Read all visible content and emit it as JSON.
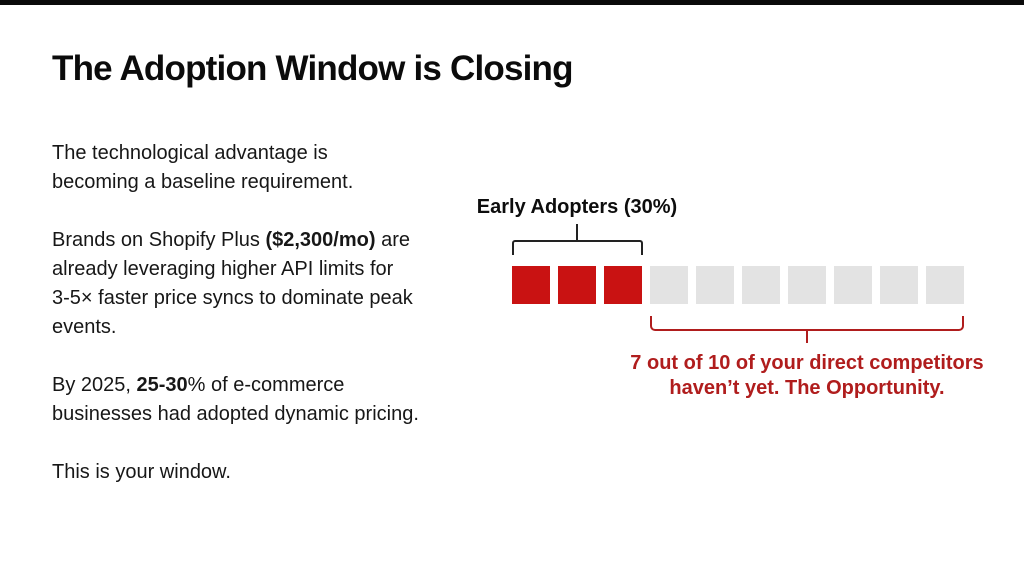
{
  "title": "The Adoption Window is Closing",
  "left": {
    "p1": {
      "l1": "The technological advantage is",
      "l2": "becoming a baseline requirement."
    },
    "p2": {
      "l1a": "Brands on Shopify Plus ",
      "l1b": "($2,300/mo)",
      "l1c": " are",
      "l2": "already leveraging higher API limits for",
      "l3": "3-5× faster price syncs to dominate peak",
      "l4": "events."
    },
    "p3": {
      "l1a": "By 2025, ",
      "l1b": "25-30",
      "l1c": "% of e-commerce",
      "l2": "businesses had adopted dynamic pricing."
    },
    "p4": {
      "l1": "This is your window."
    }
  },
  "visual": {
    "early_label": "Early Adopters (30%)",
    "caption_line1": "7 out of 10 of your direct competitors",
    "caption_line2": "haven’t yet. The Opportunity.",
    "squares": {
      "total": 10,
      "adopted": 3
    }
  },
  "colors": {
    "adopted_red": "#c91212",
    "non_adopter_gray": "#e3e3e3",
    "accent_red": "#b01d1d",
    "bracket_black": "#222222"
  },
  "chart_data": {
    "type": "pictograph",
    "title": "Early Adopters (30%)",
    "categories": [
      "Early adopters",
      "Not yet adopted (direct competitors)"
    ],
    "values": [
      3,
      7
    ],
    "total_units": 10,
    "percentages": [
      30,
      70
    ],
    "unit_colors": [
      "#c91212",
      "#e3e3e3"
    ],
    "annotations": [
      "Early Adopters (30%)",
      "7 out of 10 of your direct competitors haven’t yet. The Opportunity."
    ],
    "legend_position": "none"
  }
}
